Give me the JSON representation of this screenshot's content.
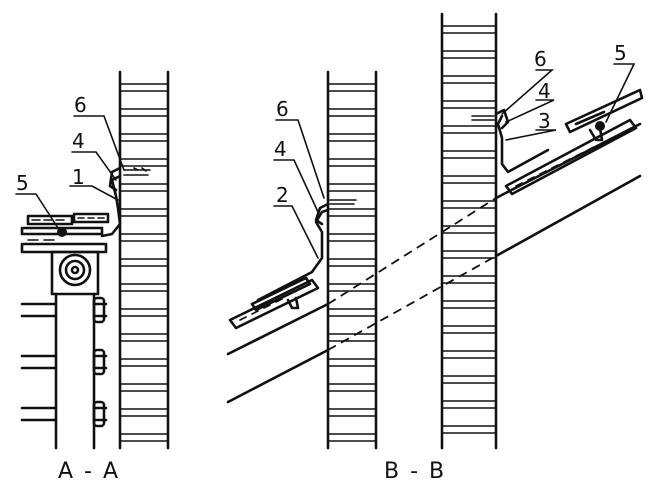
{
  "captions": {
    "left": "A - A",
    "right": "B - B"
  },
  "labels": {
    "a_6": "6",
    "a_4": "4",
    "a_1": "1",
    "a_5": "5",
    "b_6": "6",
    "b_4": "4",
    "b_2": "2",
    "c_6": "6",
    "c_4": "4",
    "c_3": "3",
    "c_5": "5"
  }
}
